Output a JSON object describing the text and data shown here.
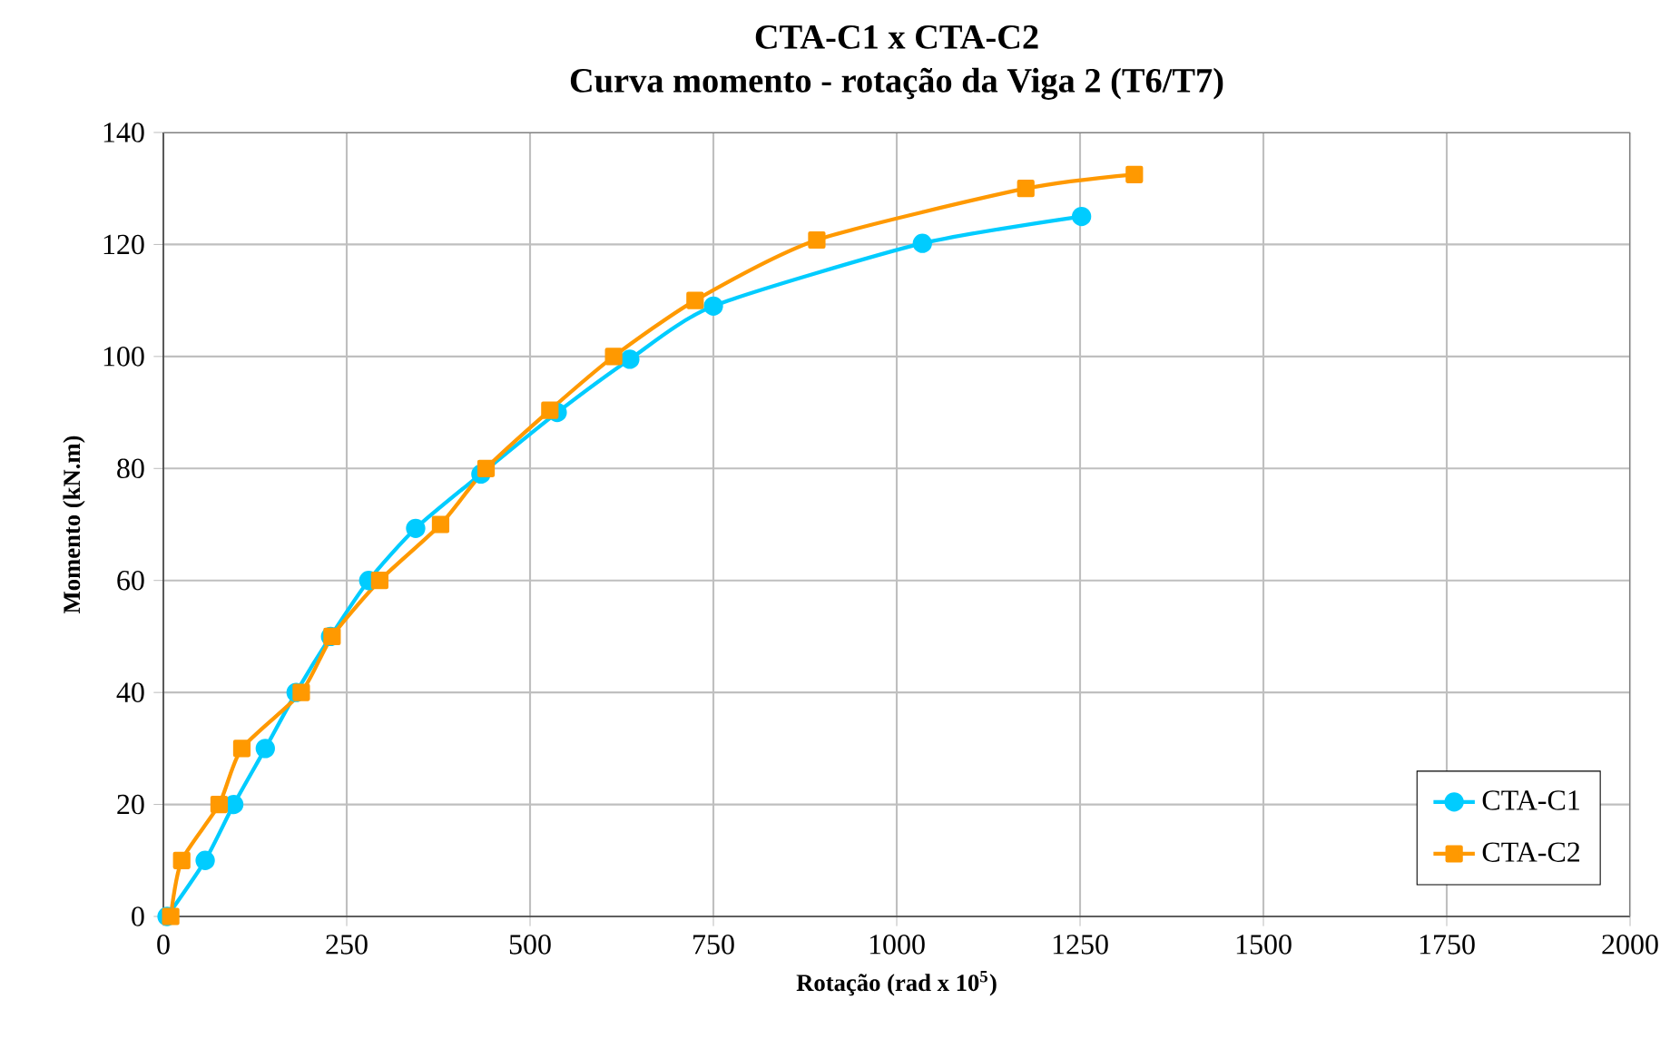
{
  "chart_data": {
    "type": "line",
    "title": "CTA-C1 x CTA-C2",
    "subtitle": "Curva momento - rotação da Viga 2 (T6/T7)",
    "xlabel": "Rotação (rad x 10$^{5}$)",
    "ylabel": "Momento (kN.m)",
    "xlim": [
      0,
      2000
    ],
    "xticks": [
      0,
      250,
      500,
      750,
      1000,
      1250,
      1500,
      1750,
      2000
    ],
    "ylim": [
      0,
      140
    ],
    "yticks": [
      0,
      20,
      40,
      60,
      80,
      100,
      120,
      140
    ],
    "grid": true,
    "legend": "bottom right",
    "series": [
      {
        "name": "CTA-C1",
        "color": "#00ccff",
        "marker": "circle",
        "x": [
          5,
          57,
          96,
          139,
          181,
          228,
          280,
          344,
          433,
          537,
          636,
          750,
          1035,
          1252
        ],
        "values": [
          0,
          10,
          20,
          30,
          40,
          50,
          60,
          69.3,
          79,
          90,
          99.5,
          109,
          120.2,
          125
        ]
      },
      {
        "name": "CTA-C2",
        "color": "#ff9900",
        "marker": "square",
        "x": [
          10,
          25,
          76,
          107,
          188,
          230,
          295,
          378,
          440,
          527,
          614,
          725,
          891,
          1176,
          1324
        ],
        "values": [
          0,
          10,
          20,
          30,
          40,
          50,
          60,
          70,
          80,
          90.4,
          100,
          110,
          120.8,
          130,
          132.5
        ]
      }
    ]
  }
}
